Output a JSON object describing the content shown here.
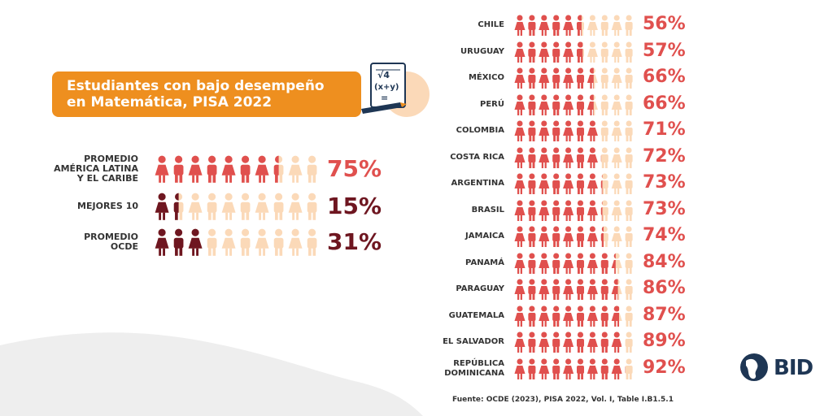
{
  "title": {
    "line1": "Estudiantes con bajo desempeño",
    "line2": "en Matemática, PISA 2022"
  },
  "math_icon": {
    "text": "√4\n(x+y)\n="
  },
  "colors": {
    "red": "#e0504e",
    "orange": "#ee8f1f",
    "dark": "#6e1620",
    "light": "#fbd9b8",
    "wave": "#eeeeee",
    "logo": "#1e3654"
  },
  "chart_data": [
    {
      "type": "pictogram",
      "unit": "%",
      "icons_per_row": 10,
      "categories": [
        "PROMEDIO AMÉRICA LATINA Y EL CARIBE",
        "MEJORES 10",
        "PROMEDIO OCDE"
      ],
      "label_lines": [
        [
          "PROMEDIO",
          "AMÉRICA LATINA",
          "Y EL CARIBE"
        ],
        [
          "MEJORES 10"
        ],
        [
          "PROMEDIO",
          "OCDE"
        ]
      ],
      "values": [
        75,
        15,
        31
      ],
      "value_labels": [
        "75%",
        "15%",
        "31%"
      ],
      "fill_colors": [
        "#e0504e",
        "#6e1620",
        "#6e1620"
      ],
      "value_label_colors": [
        "#e0504e",
        "#6e1620",
        "#6e1620"
      ]
    },
    {
      "type": "pictogram",
      "unit": "%",
      "icons_per_row": 10,
      "categories": [
        "CHILE",
        "URUGUAY",
        "MÉXICO",
        "PERÚ",
        "COLOMBIA",
        "COSTA RICA",
        "ARGENTINA",
        "BRASIL",
        "JAMAICA",
        "PANAMÁ",
        "PARAGUAY",
        "GUATEMALA",
        "EL SALVADOR",
        "REPÚBLICA DOMINICANA"
      ],
      "label_lines": [
        [
          "CHILE"
        ],
        [
          "URUGUAY"
        ],
        [
          "MÉXICO"
        ],
        [
          "PERÚ"
        ],
        [
          "COLOMBIA"
        ],
        [
          "COSTA RICA"
        ],
        [
          "ARGENTINA"
        ],
        [
          "BRASIL"
        ],
        [
          "JAMAICA"
        ],
        [
          "PANAMÁ"
        ],
        [
          "PARAGUAY"
        ],
        [
          "GUATEMALA"
        ],
        [
          "EL SALVADOR"
        ],
        [
          "REPÚBLICA",
          "DOMINICANA"
        ]
      ],
      "values": [
        56,
        57,
        66,
        66,
        71,
        72,
        73,
        73,
        74,
        84,
        86,
        87,
        89,
        92
      ],
      "value_labels": [
        "56%",
        "57%",
        "66%",
        "66%",
        "71%",
        "72%",
        "73%",
        "73%",
        "74%",
        "84%",
        "86%",
        "87%",
        "89%",
        "92%"
      ],
      "fill_color": "#e0504e"
    }
  ],
  "source": "Fuente: OCDE (2023), PISA 2022, Vol. I, Table I.B1.5.1",
  "logo": {
    "text": "BID"
  }
}
